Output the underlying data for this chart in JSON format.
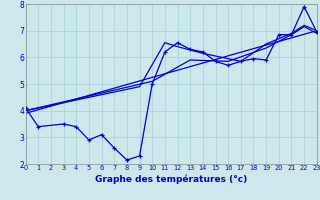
{
  "title": "Graphe des températures (°c)",
  "bg_color": "#cce8ec",
  "grid_color": "#aad4d8",
  "line_color": "#0000cc",
  "xlim": [
    0,
    23
  ],
  "ylim": [
    2,
    8
  ],
  "xticks": [
    0,
    1,
    2,
    3,
    4,
    5,
    6,
    7,
    8,
    9,
    10,
    11,
    12,
    13,
    14,
    15,
    16,
    17,
    18,
    19,
    20,
    21,
    22,
    23
  ],
  "yticks": [
    2,
    3,
    4,
    5,
    6,
    7,
    8
  ],
  "series_main": {
    "x": [
      0,
      1,
      3,
      4,
      5,
      6,
      7,
      8,
      9,
      10,
      11,
      12,
      13,
      14,
      15,
      16,
      17,
      18,
      19,
      20,
      21,
      22,
      23
    ],
    "y": [
      4.1,
      3.4,
      3.5,
      3.4,
      2.9,
      3.1,
      2.6,
      2.15,
      2.3,
      5.0,
      6.2,
      6.55,
      6.3,
      6.2,
      5.85,
      5.7,
      5.85,
      5.95,
      5.9,
      6.85,
      6.85,
      7.9,
      6.95
    ]
  },
  "trend_a": {
    "x": [
      0,
      9,
      11,
      12,
      14,
      17,
      19,
      21,
      22,
      23
    ],
    "y": [
      4.0,
      4.9,
      6.55,
      6.4,
      6.15,
      5.85,
      6.5,
      6.9,
      7.2,
      7.0
    ]
  },
  "trend_b": {
    "x": [
      0,
      10,
      13,
      16,
      19,
      21,
      22,
      23
    ],
    "y": [
      4.0,
      5.1,
      5.9,
      5.85,
      6.35,
      6.85,
      7.15,
      6.9
    ]
  },
  "trend_c": {
    "x": [
      0,
      23
    ],
    "y": [
      3.9,
      7.0
    ]
  }
}
